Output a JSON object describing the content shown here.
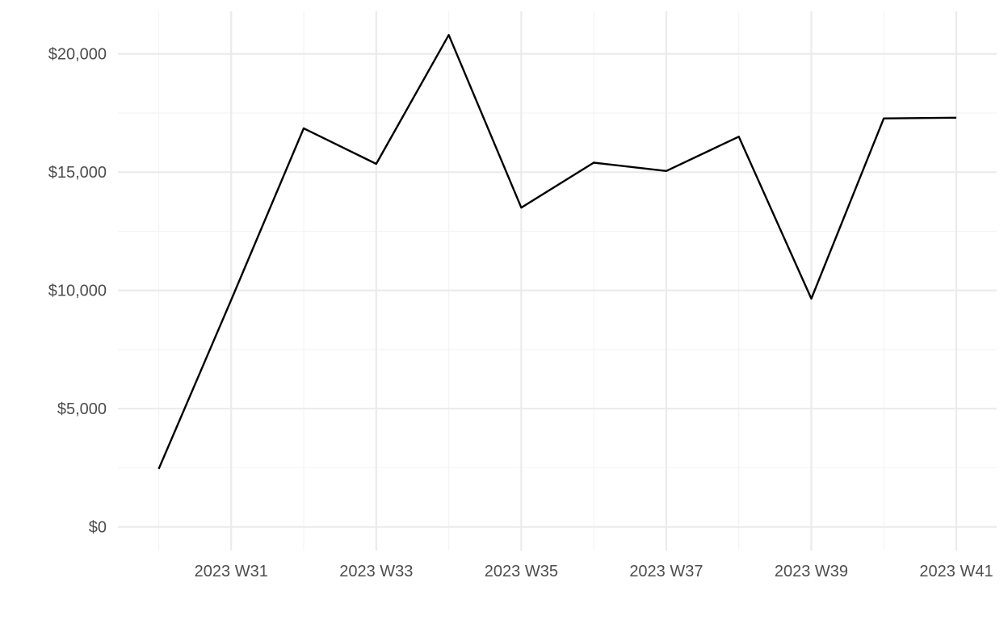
{
  "chart_data": {
    "type": "line",
    "title": "",
    "xlabel": "",
    "ylabel": "",
    "x": [
      "2023 W30",
      "2023 W31",
      "2023 W32",
      "2023 W33",
      "2023 W34",
      "2023 W35",
      "2023 W36",
      "2023 W37",
      "2023 W38",
      "2023 W39",
      "2023 W40",
      "2023 W41"
    ],
    "x_tick_labels": [
      "2023 W31",
      "2023 W33",
      "2023 W35",
      "2023 W37",
      "2023 W39",
      "2023 W41"
    ],
    "series": [
      {
        "values": [
          2450,
          9600,
          16850,
          15350,
          20800,
          13500,
          15400,
          15050,
          16500,
          9650,
          17270,
          17300
        ]
      }
    ],
    "y_ticks": [
      0,
      5000,
      10000,
      15000,
      20000
    ],
    "y_tick_labels": [
      "$0",
      "$5,000",
      "$10,000",
      "$15,000",
      "$20,000"
    ],
    "ylim": [
      -1000,
      21800
    ],
    "grid": true,
    "legend": "none",
    "colors": {
      "line": "#000000",
      "grid_major": "#ebebeb",
      "grid_minor": "#f4f4f4",
      "tick_text": "#4d4d4d"
    }
  }
}
